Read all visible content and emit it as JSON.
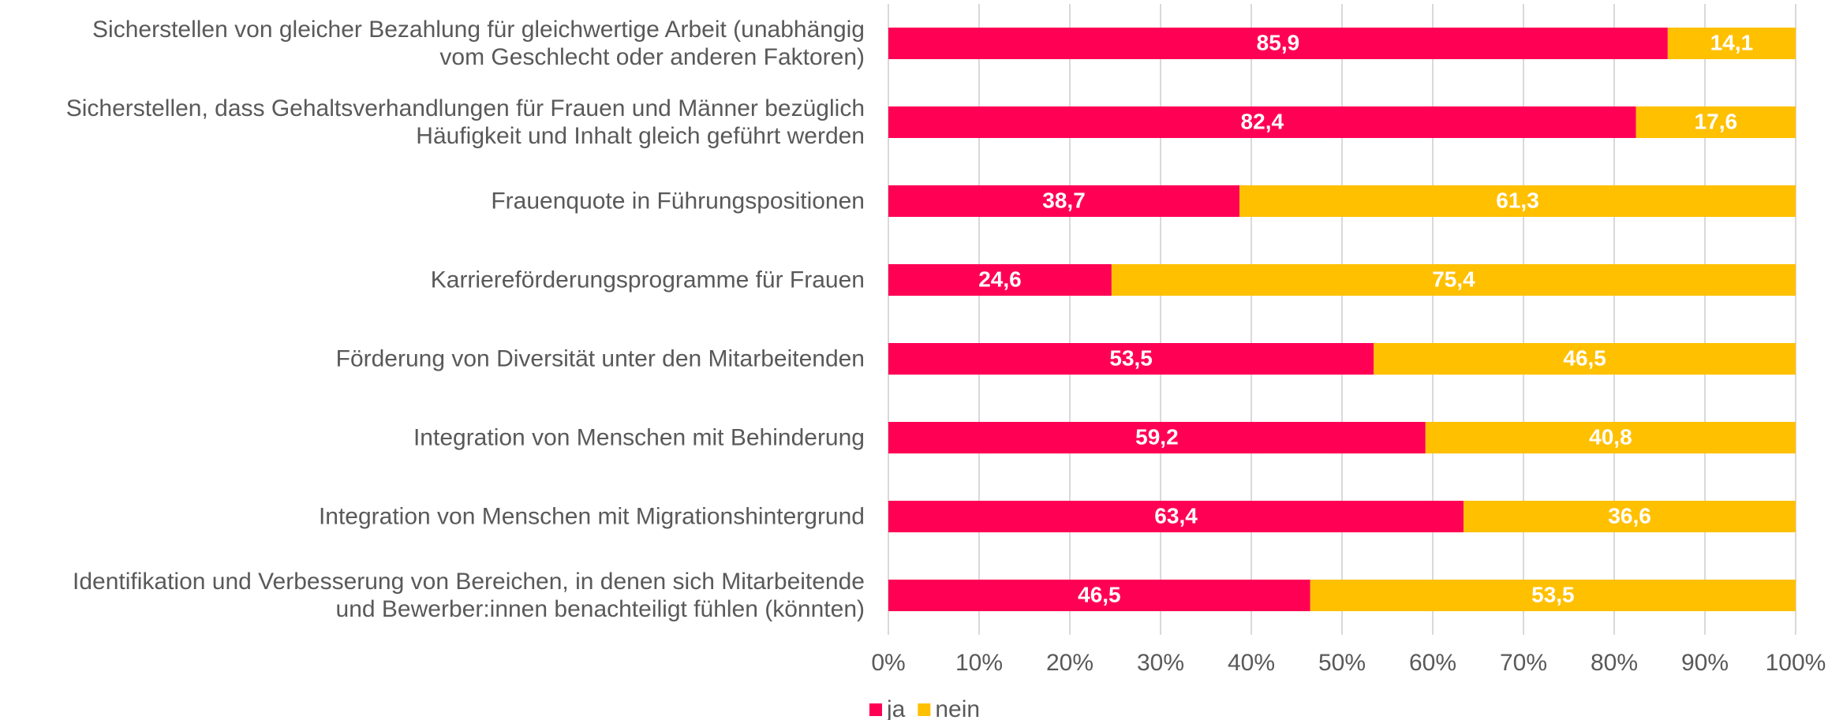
{
  "chart_data": {
    "type": "stacked_barh",
    "categories": [
      "Sicherstellen von gleicher Bezahlung für gleichwertige Arbeit (unabhängig\nvom Geschlecht oder anderen Faktoren)",
      "Sicherstellen, dass Gehaltsverhandlungen für Frauen und Männer bezüglich\nHäufigkeit und Inhalt gleich geführt werden",
      "Frauenquote in Führungspositionen",
      "Karriereförderungsprogramme für Frauen",
      "Förderung von Diversität unter den Mitarbeitenden",
      "Integration von Menschen mit Behinderung",
      "Integration von Menschen mit Migrationshintergrund",
      "Identifikation und Verbesserung von Bereichen, in denen sich Mitarbeitende\nund Bewerber:innen benachteiligt fühlen (könnten)"
    ],
    "series": [
      {
        "name": "ja",
        "color": "#ff0055",
        "values": [
          85.9,
          82.4,
          38.7,
          24.6,
          53.5,
          59.2,
          63.4,
          46.5
        ],
        "value_labels": [
          "85,9",
          "82,4",
          "38,7",
          "24,6",
          "53,5",
          "59,2",
          "63,4",
          "46,5"
        ]
      },
      {
        "name": "nein",
        "color": "#ffc000",
        "values": [
          14.1,
          17.6,
          61.3,
          75.4,
          46.5,
          40.8,
          36.6,
          53.5
        ],
        "value_labels": [
          "14,1",
          "17,6",
          "61,3",
          "75,4",
          "46,5",
          "40,8",
          "36,6",
          "53,5"
        ]
      }
    ],
    "xlim": [
      0,
      100
    ],
    "xticks": [
      {
        "value": 0,
        "label": "0%"
      },
      {
        "value": 10,
        "label": "10%"
      },
      {
        "value": 20,
        "label": "20%"
      },
      {
        "value": 30,
        "label": "30%"
      },
      {
        "value": 40,
        "label": "40%"
      },
      {
        "value": 50,
        "label": "50%"
      },
      {
        "value": 60,
        "label": "60%"
      },
      {
        "value": 70,
        "label": "70%"
      },
      {
        "value": 80,
        "label": "80%"
      },
      {
        "value": 90,
        "label": "90%"
      },
      {
        "value": 100,
        "label": "100%"
      }
    ],
    "grid": true,
    "legend": "bottom"
  }
}
